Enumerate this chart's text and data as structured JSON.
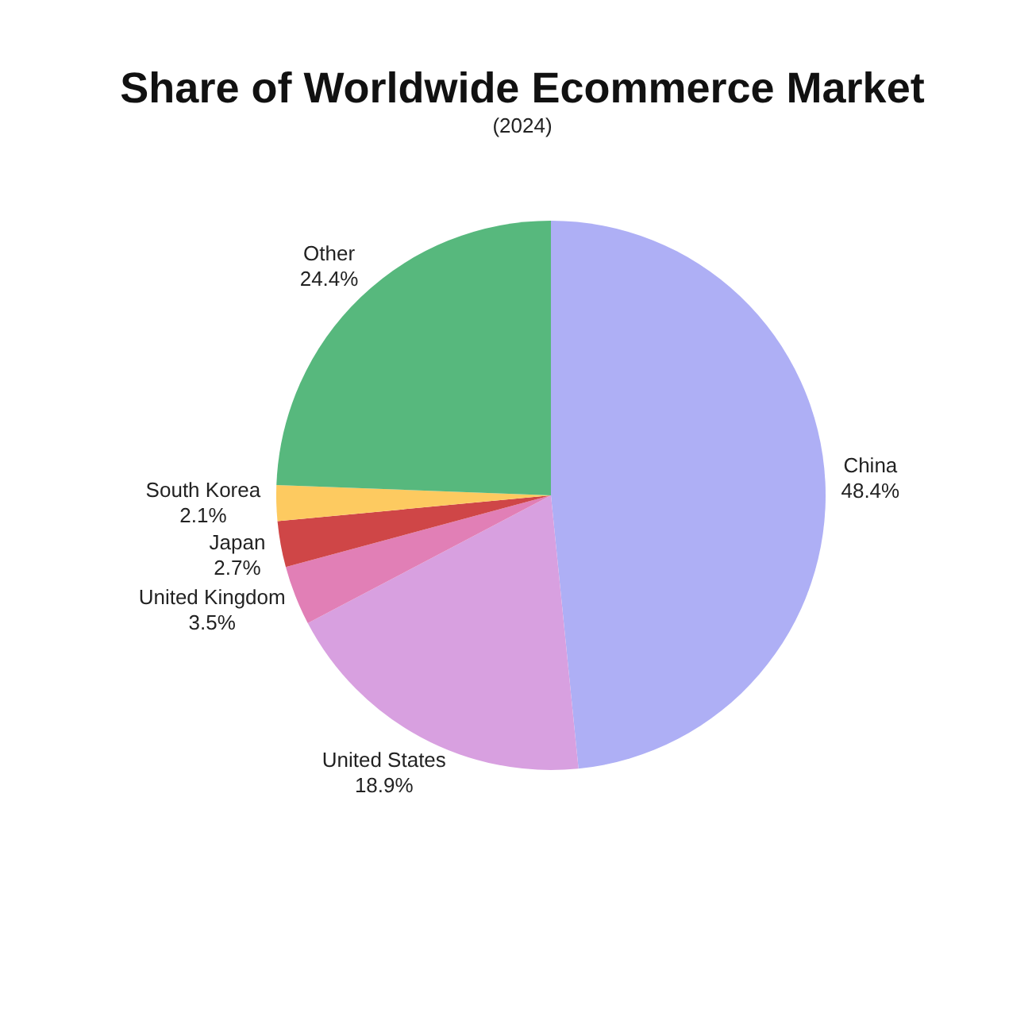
{
  "chart_data": {
    "type": "pie",
    "title": "Share of Worldwide Ecommerce Market",
    "subtitle": "(2024)",
    "categories": [
      "China",
      "United States",
      "United Kingdom",
      "Japan",
      "South Korea",
      "Other"
    ],
    "values": [
      48.4,
      18.9,
      3.5,
      2.7,
      2.1,
      24.4
    ],
    "colors": [
      "#aeaff5",
      "#d8a0e0",
      "#e17fb6",
      "#cf4647",
      "#fdca60",
      "#57b87d"
    ],
    "value_labels": [
      "48.4%",
      "18.9%",
      "3.5%",
      "2.7%",
      "2.1%",
      "24.4%"
    ],
    "legend": false
  }
}
